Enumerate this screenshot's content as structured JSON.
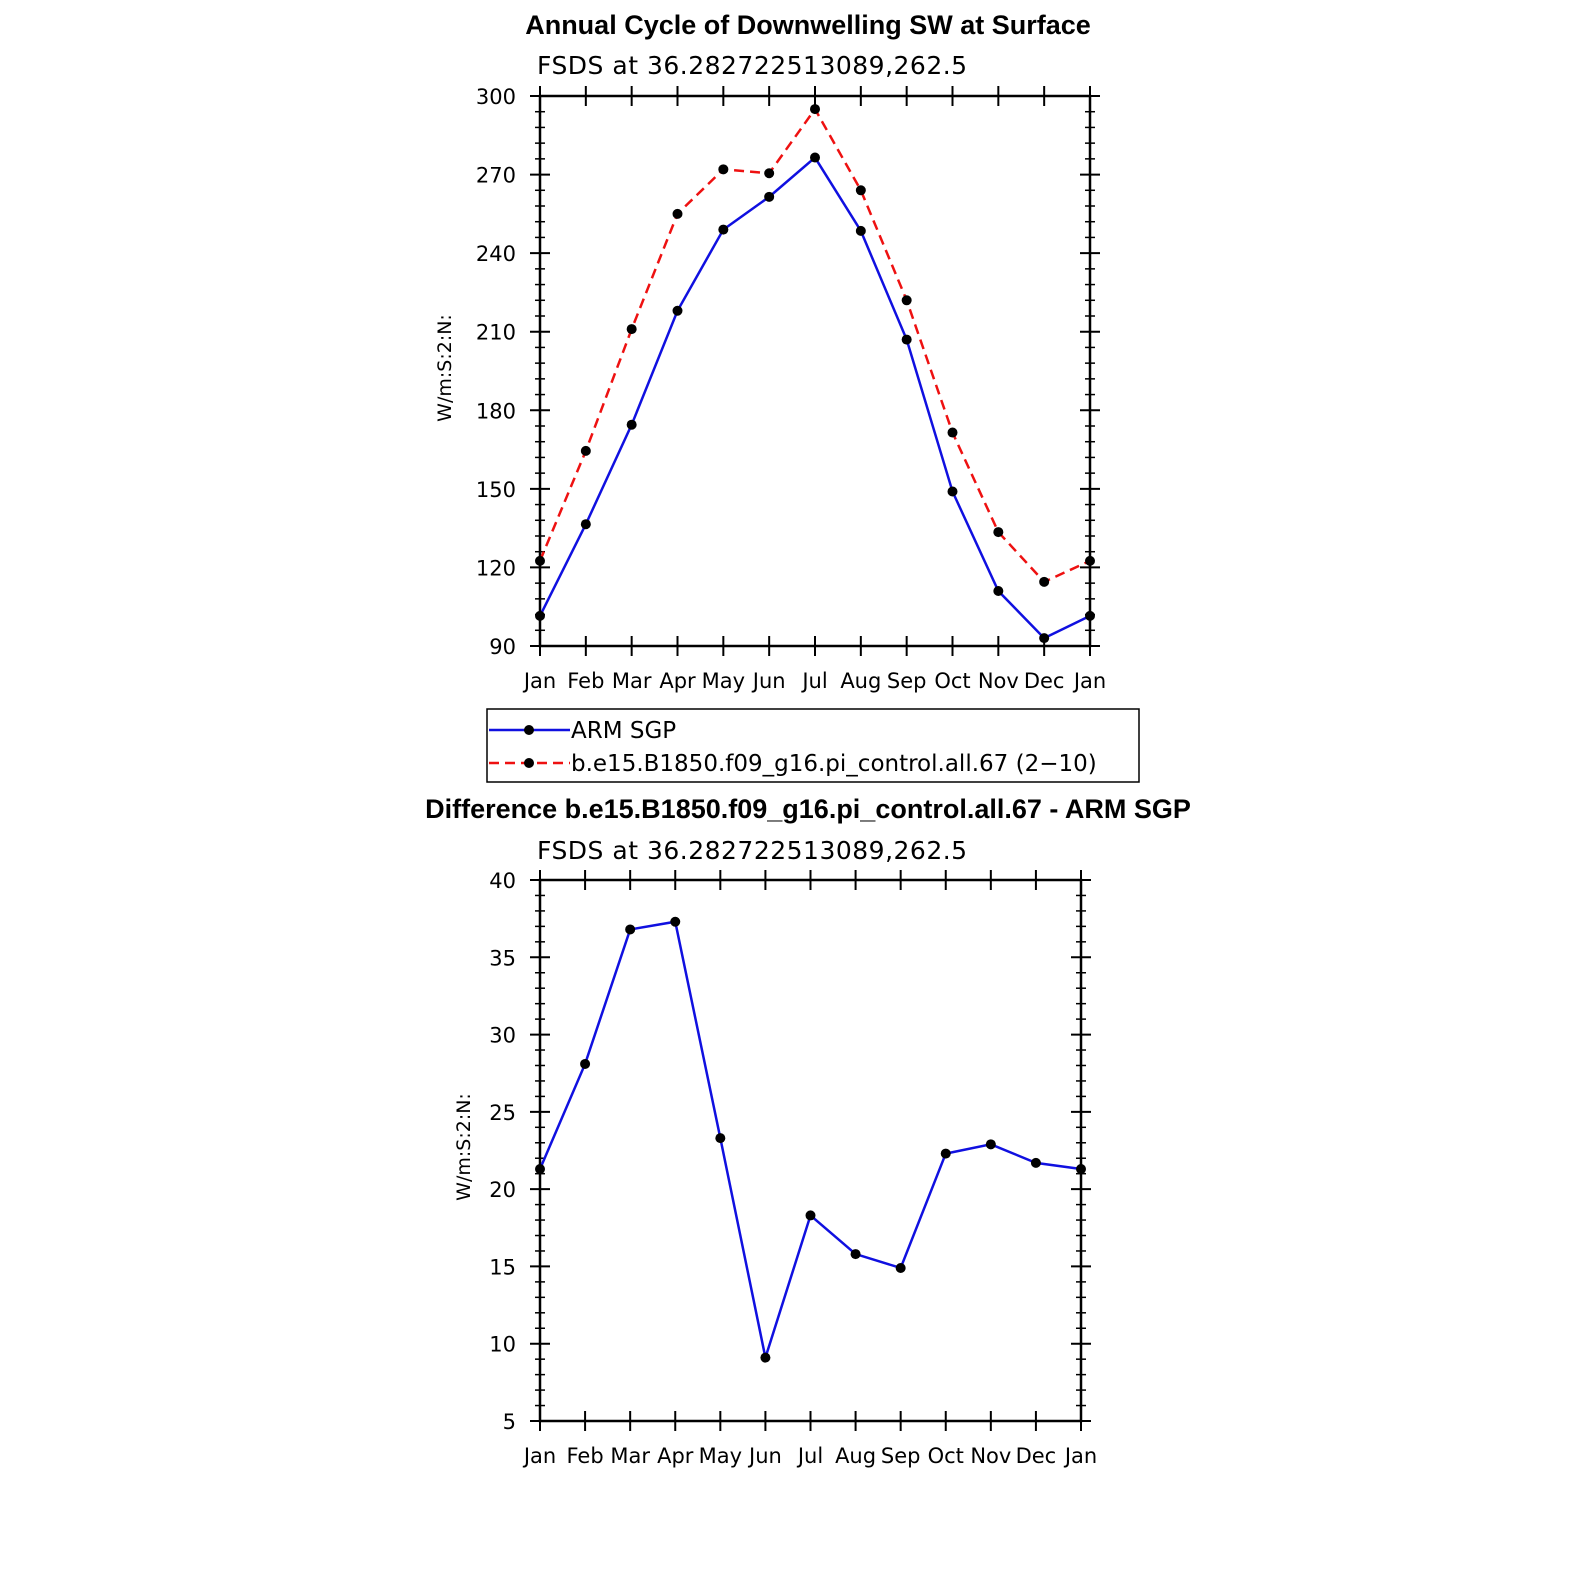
{
  "chart_data": [
    {
      "type": "line",
      "title": "Annual Cycle of Downwelling SW at Surface",
      "subtitle": "FSDS at 36.282722513089,262.5",
      "xlabel": "",
      "ylabel": "W/m:S:2:N:",
      "categories": [
        "Jan",
        "Feb",
        "Mar",
        "Apr",
        "May",
        "Jun",
        "Jul",
        "Aug",
        "Sep",
        "Oct",
        "Nov",
        "Dec",
        "Jan"
      ],
      "ylim": [
        90,
        300
      ],
      "yticks": [
        90,
        120,
        150,
        180,
        210,
        240,
        270,
        300
      ],
      "series": [
        {
          "name": "ARM SGP",
          "color": "#1010e0",
          "dash": "solid",
          "values": [
            101.5,
            136.5,
            174.5,
            218,
            249,
            261.5,
            276.5,
            248.5,
            207,
            149,
            111,
            93,
            101.5
          ]
        },
        {
          "name": "b.e15.B1850.f09_g16.pi_control.all.67 (2−10)",
          "color": "#ee1111",
          "dash": "dashed",
          "values": [
            122.5,
            164.5,
            211,
            255,
            272,
            270.5,
            295,
            264,
            222,
            171.5,
            133.5,
            114.5,
            122.5
          ]
        }
      ],
      "legend": [
        {
          "label": "ARM SGP"
        },
        {
          "label": "b.e15.B1850.f09_g16.pi_control.all.67 (2−10)"
        }
      ]
    },
    {
      "type": "line",
      "title": "Difference b.e15.B1850.f09_g16.pi_control.all.67 - ARM SGP",
      "subtitle": "FSDS at 36.282722513089,262.5",
      "xlabel": "",
      "ylabel": "W/m:S:2:N:",
      "categories": [
        "Jan",
        "Feb",
        "Mar",
        "Apr",
        "May",
        "Jun",
        "Jul",
        "Aug",
        "Sep",
        "Oct",
        "Nov",
        "Dec",
        "Jan"
      ],
      "ylim": [
        5,
        40
      ],
      "yticks": [
        5,
        10,
        15,
        20,
        25,
        30,
        35,
        40
      ],
      "series": [
        {
          "name": "Difference",
          "color": "#1010e0",
          "dash": "solid",
          "values": [
            21.3,
            28.1,
            36.8,
            37.3,
            23.3,
            9.1,
            18.3,
            15.8,
            14.9,
            22.3,
            22.9,
            21.7,
            21.3
          ]
        }
      ]
    }
  ]
}
